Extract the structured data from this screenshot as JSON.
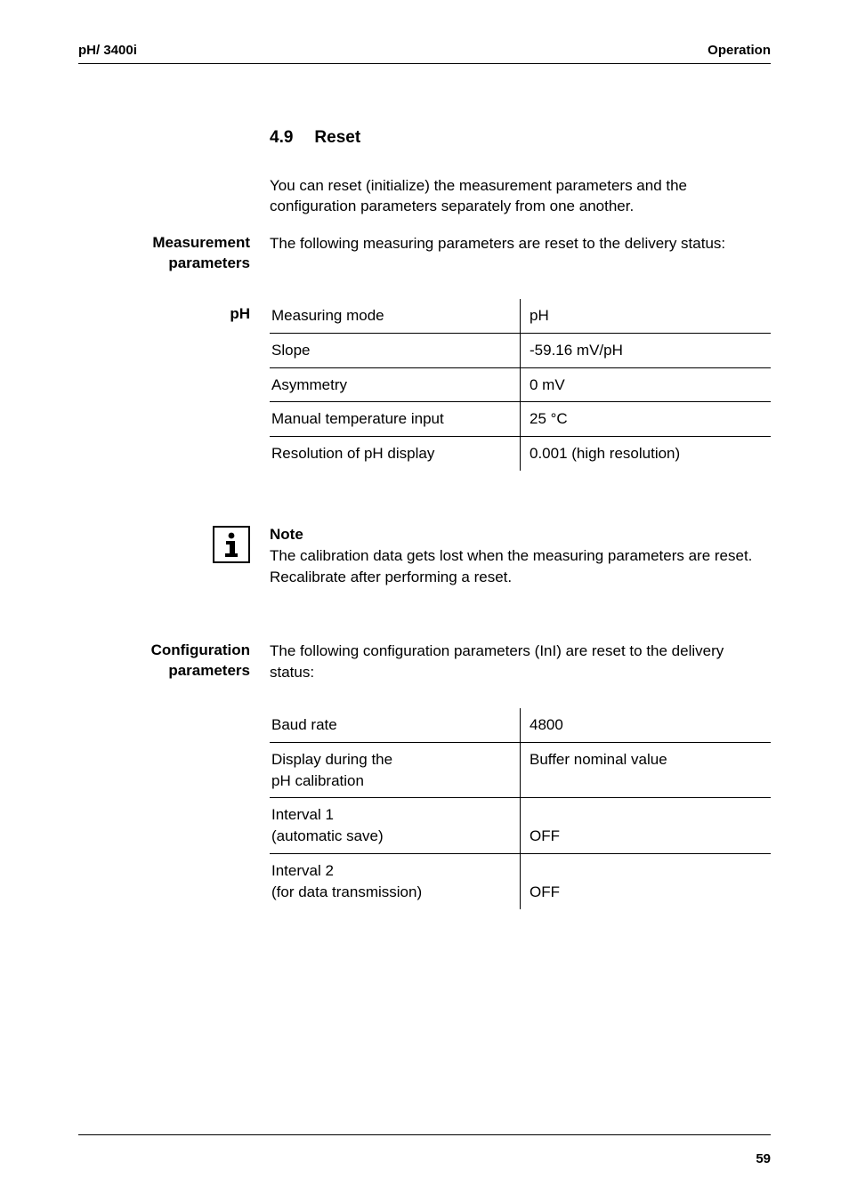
{
  "header": {
    "left": "pH/ 3400i",
    "right": "Operation"
  },
  "section": {
    "number": "4.9",
    "title": "Reset"
  },
  "intro": "You can reset (initialize) the measurement parameters and the configuration parameters separately from one another.",
  "measurement": {
    "label_line1": "Measurement",
    "label_line2": "parameters",
    "text": "The following measuring parameters are reset to the delivery status:"
  },
  "ph": {
    "label": "pH",
    "rows": [
      {
        "k": "Measuring mode",
        "v": "pH",
        "ruled": true
      },
      {
        "k": "Slope",
        "v": "-59.16 mV/pH",
        "ruled": true
      },
      {
        "k": "Asymmetry",
        "v": "0 mV",
        "ruled": true
      },
      {
        "k": "Manual temperature input",
        "v": "25 °C",
        "ruled": true
      },
      {
        "k": "Resolution of pH display",
        "v": "0.001 (high resolution)",
        "ruled": false
      }
    ]
  },
  "note": {
    "title": "Note",
    "text": "The calibration data gets lost when the measuring parameters are reset. Recalibrate after performing a reset."
  },
  "config": {
    "label_line1": "Configuration",
    "label_line2": "parameters",
    "text": "The following configuration parameters (InI) are reset to the delivery status:",
    "rows": [
      {
        "k": "Baud rate",
        "v": "4800",
        "ruled": true
      },
      {
        "k": "Display during the\npH calibration",
        "v": "Buffer nominal value",
        "ruled": true
      },
      {
        "k": "Interval 1\n(automatic save)",
        "v": "\nOFF",
        "ruled": true
      },
      {
        "k": "Interval 2\n(for data transmission)",
        "v": "\nOFF",
        "ruled": false
      }
    ]
  },
  "footer": {
    "page": "59"
  }
}
